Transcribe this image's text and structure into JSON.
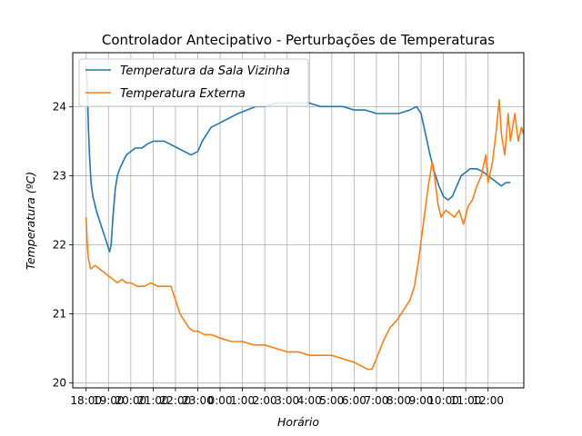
{
  "chart_data": {
    "type": "line",
    "title": "Controlador Antecipativo - Perturbações de Temperaturas",
    "xlabel": "Horário",
    "ylabel": "Temperatura (ºC)",
    "x_tick_labels": [
      "18:00",
      "19:00",
      "20:00",
      "21:00",
      "22:00",
      "23:00",
      "0:00",
      "1:00",
      "2:00",
      "3:00",
      "4:00",
      "5:00",
      "6:00",
      "7:00",
      "8:00",
      "9:00",
      "10:00",
      "11:00",
      "12:00"
    ],
    "x_unit": "hours since 18:00",
    "xlim": [
      -0.6,
      19.6
    ],
    "yticks": [
      20,
      21,
      22,
      23,
      24
    ],
    "ylim": [
      19.93,
      24.78
    ],
    "grid": true,
    "legend_position": "top-left",
    "series": [
      {
        "name": "Temperatura da Sala Vizinha",
        "color": "#1f77b4",
        "points": [
          [
            0.0,
            24.6
          ],
          [
            0.05,
            24.3
          ],
          [
            0.1,
            23.7
          ],
          [
            0.15,
            23.3
          ],
          [
            0.22,
            22.9
          ],
          [
            0.3,
            22.7
          ],
          [
            0.38,
            22.6
          ],
          [
            0.45,
            22.5
          ],
          [
            0.55,
            22.4
          ],
          [
            0.65,
            22.3
          ],
          [
            0.75,
            22.2
          ],
          [
            0.85,
            22.1
          ],
          [
            0.95,
            22.0
          ],
          [
            1.05,
            21.9
          ],
          [
            1.12,
            22.0
          ],
          [
            1.2,
            22.4
          ],
          [
            1.3,
            22.8
          ],
          [
            1.4,
            23.0
          ],
          [
            1.5,
            23.1
          ],
          [
            1.65,
            23.2
          ],
          [
            1.8,
            23.3
          ],
          [
            2.0,
            23.35
          ],
          [
            2.2,
            23.4
          ],
          [
            2.5,
            23.4
          ],
          [
            2.7,
            23.45
          ],
          [
            3.0,
            23.5
          ],
          [
            3.5,
            23.5
          ],
          [
            3.8,
            23.45
          ],
          [
            4.1,
            23.4
          ],
          [
            4.4,
            23.35
          ],
          [
            4.7,
            23.3
          ],
          [
            5.0,
            23.35
          ],
          [
            5.2,
            23.5
          ],
          [
            5.4,
            23.6
          ],
          [
            5.6,
            23.7
          ],
          [
            5.9,
            23.75
          ],
          [
            6.2,
            23.8
          ],
          [
            6.5,
            23.85
          ],
          [
            6.8,
            23.9
          ],
          [
            7.2,
            23.95
          ],
          [
            7.6,
            24.0
          ],
          [
            8.0,
            24.0
          ],
          [
            8.5,
            24.05
          ],
          [
            9.0,
            24.05
          ],
          [
            9.5,
            24.05
          ],
          [
            10.0,
            24.05
          ],
          [
            10.5,
            24.0
          ],
          [
            11.0,
            24.0
          ],
          [
            11.5,
            24.0
          ],
          [
            12.0,
            23.95
          ],
          [
            12.5,
            23.95
          ],
          [
            13.0,
            23.9
          ],
          [
            13.5,
            23.9
          ],
          [
            14.0,
            23.9
          ],
          [
            14.5,
            23.95
          ],
          [
            14.8,
            24.0
          ],
          [
            15.0,
            23.9
          ],
          [
            15.2,
            23.6
          ],
          [
            15.4,
            23.3
          ],
          [
            15.6,
            23.05
          ],
          [
            15.8,
            22.85
          ],
          [
            16.0,
            22.7
          ],
          [
            16.2,
            22.65
          ],
          [
            16.4,
            22.7
          ],
          [
            16.6,
            22.85
          ],
          [
            16.8,
            23.0
          ],
          [
            17.0,
            23.05
          ],
          [
            17.2,
            23.1
          ],
          [
            17.5,
            23.1
          ],
          [
            17.8,
            23.05
          ],
          [
            18.0,
            23.0
          ],
          [
            18.2,
            22.95
          ],
          [
            18.4,
            22.9
          ],
          [
            18.6,
            22.85
          ],
          [
            18.8,
            22.9
          ],
          [
            19.0,
            22.9
          ]
        ]
      },
      {
        "name": "Temperatura Externa",
        "color": "#ff7f0e",
        "points": [
          [
            0.0,
            22.4
          ],
          [
            0.05,
            22.0
          ],
          [
            0.1,
            21.8
          ],
          [
            0.2,
            21.65
          ],
          [
            0.4,
            21.7
          ],
          [
            0.6,
            21.65
          ],
          [
            0.8,
            21.6
          ],
          [
            1.0,
            21.55
          ],
          [
            1.2,
            21.5
          ],
          [
            1.4,
            21.45
          ],
          [
            1.6,
            21.5
          ],
          [
            1.8,
            21.45
          ],
          [
            2.0,
            21.45
          ],
          [
            2.3,
            21.4
          ],
          [
            2.6,
            21.4
          ],
          [
            2.9,
            21.45
          ],
          [
            3.2,
            21.4
          ],
          [
            3.5,
            21.4
          ],
          [
            3.8,
            21.4
          ],
          [
            4.0,
            21.2
          ],
          [
            4.2,
            21.0
          ],
          [
            4.4,
            20.9
          ],
          [
            4.6,
            20.8
          ],
          [
            4.8,
            20.75
          ],
          [
            5.0,
            20.75
          ],
          [
            5.3,
            20.7
          ],
          [
            5.6,
            20.7
          ],
          [
            6.0,
            20.65
          ],
          [
            6.5,
            20.6
          ],
          [
            7.0,
            20.6
          ],
          [
            7.5,
            20.55
          ],
          [
            8.0,
            20.55
          ],
          [
            8.5,
            20.5
          ],
          [
            9.0,
            20.45
          ],
          [
            9.5,
            20.45
          ],
          [
            10.0,
            20.4
          ],
          [
            10.5,
            20.4
          ],
          [
            11.0,
            20.4
          ],
          [
            11.5,
            20.35
          ],
          [
            12.0,
            20.3
          ],
          [
            12.3,
            20.25
          ],
          [
            12.6,
            20.2
          ],
          [
            12.8,
            20.2
          ],
          [
            13.0,
            20.35
          ],
          [
            13.3,
            20.6
          ],
          [
            13.6,
            20.8
          ],
          [
            13.9,
            20.9
          ],
          [
            14.2,
            21.05
          ],
          [
            14.5,
            21.2
          ],
          [
            14.7,
            21.4
          ],
          [
            14.9,
            21.8
          ],
          [
            15.1,
            22.3
          ],
          [
            15.3,
            22.8
          ],
          [
            15.5,
            23.2
          ],
          [
            15.6,
            23.0
          ],
          [
            15.75,
            22.6
          ],
          [
            15.9,
            22.4
          ],
          [
            16.1,
            22.5
          ],
          [
            16.3,
            22.45
          ],
          [
            16.5,
            22.4
          ],
          [
            16.7,
            22.5
          ],
          [
            16.9,
            22.3
          ],
          [
            17.1,
            22.55
          ],
          [
            17.3,
            22.65
          ],
          [
            17.5,
            22.85
          ],
          [
            17.7,
            23.0
          ],
          [
            17.9,
            23.3
          ],
          [
            18.0,
            22.9
          ],
          [
            18.2,
            23.2
          ],
          [
            18.35,
            23.6
          ],
          [
            18.5,
            24.1
          ],
          [
            18.6,
            23.6
          ],
          [
            18.75,
            23.3
          ],
          [
            18.9,
            23.9
          ],
          [
            19.0,
            23.5
          ],
          [
            19.2,
            23.9
          ],
          [
            19.35,
            23.5
          ],
          [
            19.5,
            23.7
          ],
          [
            19.6,
            23.6
          ]
        ]
      }
    ]
  }
}
